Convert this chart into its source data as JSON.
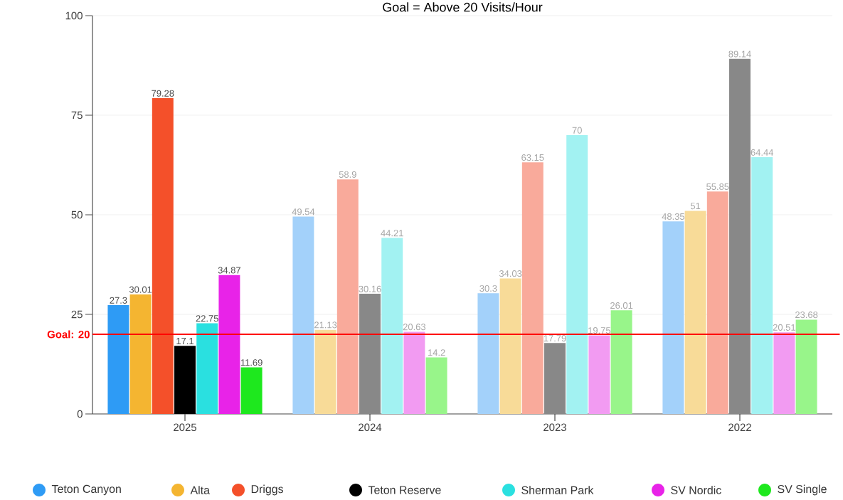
{
  "chart_data": {
    "type": "bar",
    "title": "Goal = Above 20 Visits/Hour",
    "categories": [
      "2025",
      "2024",
      "2023",
      "2022"
    ],
    "series": [
      {
        "name": "Teton Canyon",
        "color": "#2e9bf5",
        "colors": [
          "#2e9bf5",
          "#a3d1fa",
          "#a3d1fa",
          "#a3d1fa"
        ],
        "values": [
          27.3,
          49.54,
          30.3,
          48.35
        ]
      },
      {
        "name": "Alta",
        "color": "#f4b531",
        "colors": [
          "#f4b531",
          "#f8db98",
          "#f8db98",
          "#f8db98"
        ],
        "values": [
          30.01,
          21.13,
          34.03,
          51
        ]
      },
      {
        "name": "Driggs",
        "color": "#f4502a",
        "colors": [
          "#f4502a",
          "#f9aa9b",
          "#f9aa9b",
          "#f9aa9b"
        ],
        "values": [
          79.28,
          58.9,
          63.15,
          55.85
        ]
      },
      {
        "name": "Teton Reserve",
        "color": "#000000",
        "colors": [
          "#000000",
          "#888888",
          "#888888",
          "#888888"
        ],
        "values": [
          17.1,
          30.16,
          17.79,
          89.14
        ]
      },
      {
        "name": "Sherman Park",
        "color": "#2ae0e0",
        "colors": [
          "#2ae0e0",
          "#a2f2f2",
          "#a2f2f2",
          "#a2f2f2"
        ],
        "values": [
          22.75,
          44.21,
          70,
          64.44
        ]
      },
      {
        "name": "SV Nordic",
        "color": "#e823e8",
        "colors": [
          "#e823e8",
          "#f29bf2",
          "#f29bf2",
          "#f29bf2"
        ],
        "values": [
          34.87,
          20.63,
          19.75,
          20.51
        ]
      },
      {
        "name": "SV Single",
        "color": "#1ee81e",
        "colors": [
          "#1ee81e",
          "#98f58a",
          "#98f58a",
          "#98f58a"
        ],
        "values": [
          11.69,
          14.2,
          26.01,
          23.68
        ]
      }
    ],
    "ylim": [
      0,
      100
    ],
    "yticks": [
      0,
      25,
      50,
      75,
      100
    ],
    "grid": "y",
    "legend": "bottom",
    "data_labels": true,
    "ref_lines": [
      {
        "axis": "y",
        "value": 20,
        "label": "Goal: 20",
        "color": "#ff0000"
      }
    ]
  }
}
